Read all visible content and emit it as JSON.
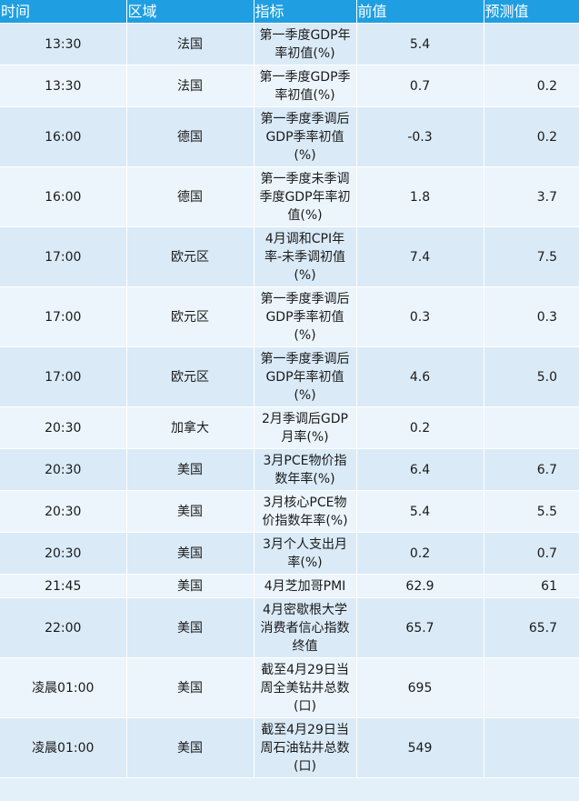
{
  "table": {
    "headers": [
      "时间",
      "区域",
      "指标",
      "前值",
      "预测值"
    ],
    "rows": [
      {
        "time": "13:30",
        "region": "法国",
        "indicator": "第一季度GDP年率初值(%)",
        "previous": "5.4",
        "forecast": ""
      },
      {
        "time": "13:30",
        "region": "法国",
        "indicator": "第一季度GDP季率初值(%)",
        "previous": "0.7",
        "forecast": "0.2"
      },
      {
        "time": "16:00",
        "region": "德国",
        "indicator": "第一季度季调后GDP季率初值(%)",
        "previous": "-0.3",
        "forecast": "0.2"
      },
      {
        "time": "16:00",
        "region": "德国",
        "indicator": "第一季度未季调季度GDP年率初值(%)",
        "previous": "1.8",
        "forecast": "3.7"
      },
      {
        "time": "17:00",
        "region": "欧元区",
        "indicator": "4月调和CPI年率-未季调初值(%)",
        "previous": "7.4",
        "forecast": "7.5"
      },
      {
        "time": "17:00",
        "region": "欧元区",
        "indicator": "第一季度季调后GDP季率初值(%)",
        "previous": "0.3",
        "forecast": "0.3"
      },
      {
        "time": "17:00",
        "region": "欧元区",
        "indicator": "第一季度季调后GDP年率初值(%)",
        "previous": "4.6",
        "forecast": "5.0"
      },
      {
        "time": "20:30",
        "region": "加拿大",
        "indicator": "2月季调后GDP月率(%)",
        "previous": "0.2",
        "forecast": ""
      },
      {
        "time": "20:30",
        "region": "美国",
        "indicator": "3月PCE物价指数年率(%)",
        "previous": "6.4",
        "forecast": "6.7"
      },
      {
        "time": "20:30",
        "region": "美国",
        "indicator": "3月核心PCE物价指数年率(%)",
        "previous": "5.4",
        "forecast": "5.5"
      },
      {
        "time": "20:30",
        "region": "美国",
        "indicator": "3月个人支出月率(%)",
        "previous": "0.2",
        "forecast": "0.7"
      },
      {
        "time": "21:45",
        "region": "美国",
        "indicator": "4月芝加哥PMI",
        "previous": "62.9",
        "forecast": "61"
      },
      {
        "time": "22:00",
        "region": "美国",
        "indicator": "4月密歇根大学消费者信心指数终值",
        "previous": "65.7",
        "forecast": "65.7"
      },
      {
        "time": "凌晨01:00",
        "region": "美国",
        "indicator": "截至4月29日当周全美钻井总数(口)",
        "previous": "695",
        "forecast": ""
      },
      {
        "time": "凌晨01:00",
        "region": "美国",
        "indicator": "截至4月29日当周石油钻井总数(口)",
        "previous": "549",
        "forecast": ""
      }
    ]
  },
  "colors": {
    "header_bg": "#1f9fe2",
    "row_odd": "#daeaf7",
    "row_even": "#ecf5fc"
  }
}
